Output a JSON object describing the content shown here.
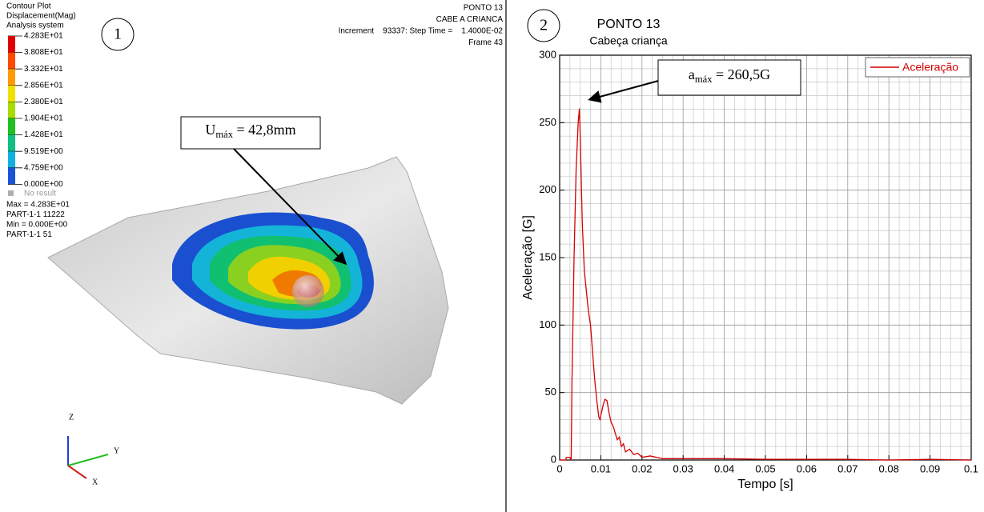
{
  "left_panel": {
    "marker": "1",
    "header": [
      "Contour Plot",
      "Displacement(Mag)",
      "Analysis system"
    ],
    "legend_labels": [
      "4.283E+01",
      "3.808E+01",
      "3.332E+01",
      "2.856E+01",
      "2.380E+01",
      "1.904E+01",
      "1.428E+01",
      "9.519E+00",
      "4.759E+00",
      "0.000E+00"
    ],
    "no_result": "No result",
    "info": [
      "Max = 4.283E+01",
      "PART-1-1 11222",
      "Min = 0.000E+00",
      "PART-1-1 51"
    ],
    "top_right": [
      "PONTO 13",
      "CABE A CRIANCA",
      "Increment    93337: Step Time =    1.4000E-02",
      "Frame 43"
    ],
    "callout": {
      "base": "U",
      "sub": "máx",
      "rest": " = 42,8mm"
    },
    "axes": [
      "Z",
      "Y",
      "X"
    ]
  },
  "chart_data": {
    "type": "line",
    "marker": "2",
    "title": "PONTO 13",
    "subtitle": "Cabeça criança",
    "x_label": "Tempo [s]",
    "y_label": "Aceleração [G]",
    "x": [
      0,
      0.0015,
      0.0016,
      0.002,
      0.0025,
      0.0028,
      0.003,
      0.0035,
      0.004,
      0.0045,
      0.0048,
      0.005,
      0.0055,
      0.006,
      0.0065,
      0.007,
      0.0075,
      0.008,
      0.0085,
      0.009,
      0.0095,
      0.0098,
      0.0105,
      0.011,
      0.0115,
      0.012,
      0.0125,
      0.013,
      0.0135,
      0.014,
      0.0145,
      0.015,
      0.0155,
      0.016,
      0.017,
      0.018,
      0.019,
      0.02,
      0.022,
      0.025,
      0.03,
      0.04,
      0.05,
      0.06,
      0.07,
      0.08,
      0.09,
      0.1
    ],
    "series": [
      {
        "name": "Aceleração",
        "color": "#d40000",
        "values": [
          0,
          0,
          2,
          2,
          2,
          0,
          60,
          150,
          215,
          250,
          260.5,
          240,
          175,
          140,
          125,
          110,
          100,
          80,
          60,
          45,
          32,
          30,
          40,
          45,
          44,
          35,
          28,
          25,
          20,
          15,
          17,
          10,
          12,
          6,
          8,
          4,
          5,
          2,
          3,
          1,
          1,
          1,
          0.5,
          0.5,
          0.5,
          0,
          0.5,
          0
        ]
      }
    ],
    "xlim": [
      0,
      0.1
    ],
    "xticks": [
      0,
      0.01,
      0.02,
      0.03,
      0.04,
      0.05,
      0.06,
      0.07,
      0.08,
      0.09,
      0.1
    ],
    "ylim": [
      0,
      300
    ],
    "yticks": [
      0,
      50,
      100,
      150,
      200,
      250,
      300
    ],
    "xminorticks": [
      0.0025,
      0.005,
      0.0075,
      0.0125,
      0.015,
      0.0175,
      0.0225,
      0.025,
      0.0275,
      0.0325,
      0.035,
      0.0375,
      0.0425,
      0.045,
      0.0475,
      0.0525,
      0.055,
      0.0575,
      0.0625,
      0.065,
      0.0675,
      0.0725,
      0.075,
      0.0775,
      0.0825,
      0.085,
      0.0875,
      0.0925,
      0.095,
      0.0975
    ],
    "yminorticks": [
      10,
      20,
      30,
      40,
      60,
      70,
      80,
      90,
      110,
      120,
      130,
      140,
      160,
      170,
      180,
      190,
      210,
      220,
      230,
      240,
      260,
      270,
      280,
      290
    ],
    "grid": true,
    "legend": "top-right",
    "annotation": {
      "base": "a",
      "sub": "máx",
      "rest": " = 260,5G",
      "x": 0.0048,
      "y": 260.5
    }
  }
}
